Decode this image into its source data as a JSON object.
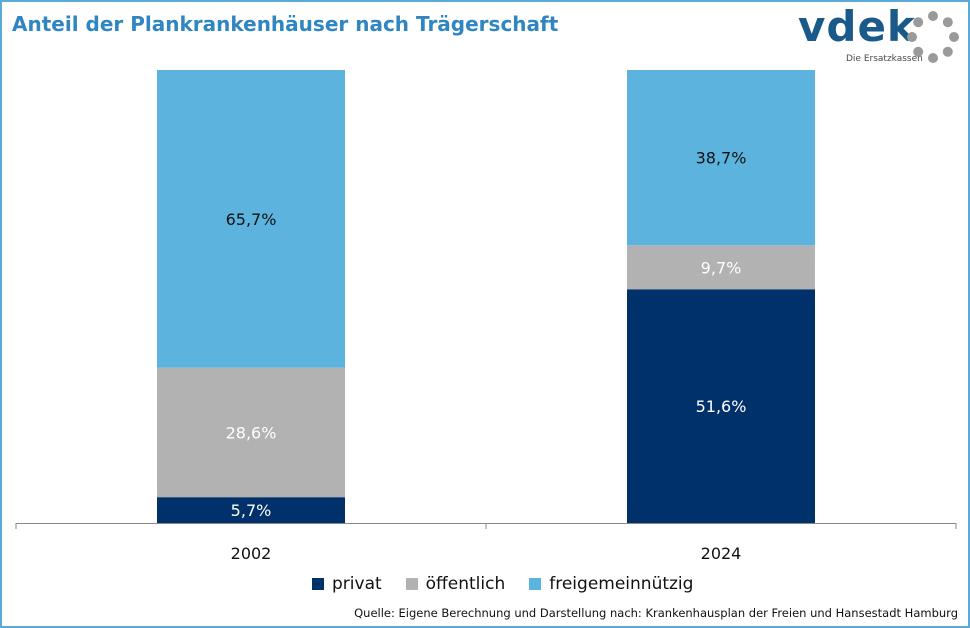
{
  "title": "Anteil der Plankrankenhäuser nach Trägerschaft",
  "logo": {
    "word": "vdek",
    "subtitle": "Die Ersatzkassen"
  },
  "source": "Quelle: Eigene Berechnung und Darstellung nach: Krankenhausplan der Freien und Hansestadt Hamburg",
  "colors": {
    "privat": "#00316a",
    "oeffentlich": "#b2b2b2",
    "freigemeinnuetzig": "#5cb4de",
    "title": "#2f86c0"
  },
  "chart_data": {
    "type": "bar",
    "stacked": true,
    "categories": [
      "2002",
      "2024"
    ],
    "series": [
      {
        "name": "privat",
        "values": [
          5.7,
          51.6
        ],
        "labels": [
          "5,7%",
          "51,6%"
        ],
        "label_color": "#ffffff"
      },
      {
        "name": "öffentlich",
        "values": [
          28.6,
          9.7
        ],
        "labels": [
          "28,6%",
          "9,7%"
        ],
        "label_color": "#ffffff"
      },
      {
        "name": "freigemeinnützig",
        "values": [
          65.7,
          38.7
        ],
        "labels": [
          "65,7%",
          "38,7%"
        ],
        "label_color": "#111111"
      }
    ],
    "ylim": [
      0,
      100
    ],
    "grid": false,
    "legend_position": "bottom"
  }
}
